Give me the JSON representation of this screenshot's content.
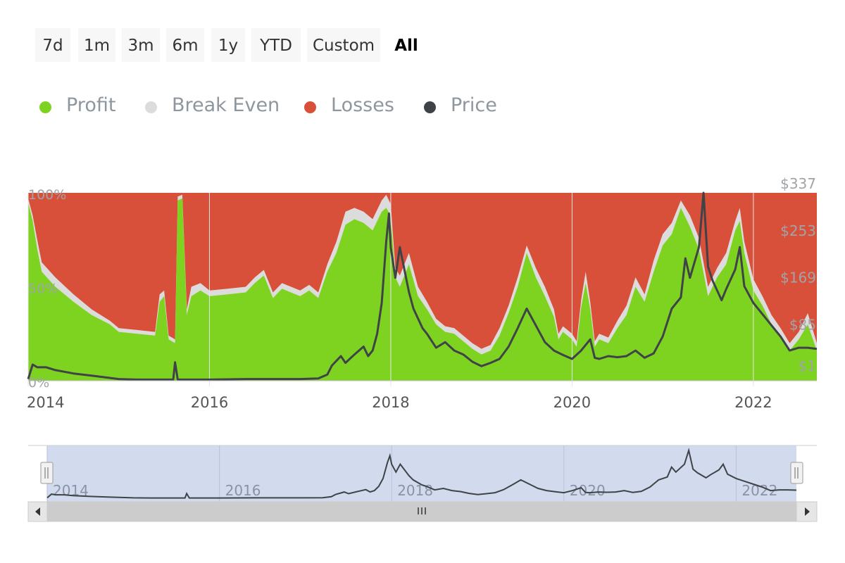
{
  "range_selector": {
    "buttons": [
      {
        "label": "7d",
        "active": false
      },
      {
        "label": "1m",
        "active": false
      },
      {
        "label": "3m",
        "active": false
      },
      {
        "label": "6m",
        "active": false
      },
      {
        "label": "1y",
        "active": false
      },
      {
        "label": "YTD",
        "active": false
      },
      {
        "label": "Custom",
        "active": false
      },
      {
        "label": "All",
        "active": true
      }
    ]
  },
  "legend": [
    {
      "label": "Profit",
      "color": "#7ed321"
    },
    {
      "label": "Break Even",
      "color": "#dcdcdc"
    },
    {
      "label": "Losses",
      "color": "#d9503a"
    },
    {
      "label": "Price",
      "color": "#3f4348"
    }
  ],
  "navigator": {
    "handle_left_icon": "grip-icon",
    "handle_right_icon": "grip-icon",
    "scroll_left_icon": "arrow-left-icon",
    "scroll_right_icon": "arrow-right-icon",
    "scroll_thumb_icon": "grip-icon",
    "x_tick_labels": [
      "2014",
      "2016",
      "2018",
      "2020",
      "2022"
    ]
  },
  "chart_data": {
    "type": "area",
    "x_tick_labels": [
      "2014",
      "2016",
      "2018",
      "2020",
      "2022"
    ],
    "y_left_tick_labels": [
      "0%",
      "50%",
      "100%"
    ],
    "y_right_tick_labels": [
      "$1",
      "$85",
      "$169",
      "$253",
      "$337"
    ],
    "ylim_left": [
      0,
      100
    ],
    "ylim_right": [
      1,
      337
    ],
    "xlim": [
      2014.0,
      2022.7
    ],
    "stacking": "percent",
    "series": [
      {
        "name": "Profit",
        "color": "#7ed321",
        "points": [
          [
            2014.0,
            95
          ],
          [
            2014.05,
            85
          ],
          [
            2014.1,
            70
          ],
          [
            2014.15,
            58
          ],
          [
            2014.3,
            50
          ],
          [
            2014.5,
            42
          ],
          [
            2014.7,
            35
          ],
          [
            2014.9,
            30
          ],
          [
            2015.0,
            26
          ],
          [
            2015.2,
            25
          ],
          [
            2015.4,
            24
          ],
          [
            2015.45,
            42
          ],
          [
            2015.5,
            45
          ],
          [
            2015.55,
            22
          ],
          [
            2015.62,
            20
          ],
          [
            2015.65,
            96
          ],
          [
            2015.7,
            97
          ],
          [
            2015.75,
            35
          ],
          [
            2015.8,
            45
          ],
          [
            2015.9,
            48
          ],
          [
            2016.0,
            45
          ],
          [
            2016.2,
            46
          ],
          [
            2016.4,
            47
          ],
          [
            2016.5,
            52
          ],
          [
            2016.6,
            56
          ],
          [
            2016.7,
            44
          ],
          [
            2016.8,
            49
          ],
          [
            2016.9,
            47
          ],
          [
            2017.0,
            45
          ],
          [
            2017.1,
            48
          ],
          [
            2017.2,
            44
          ],
          [
            2017.3,
            58
          ],
          [
            2017.4,
            68
          ],
          [
            2017.5,
            83
          ],
          [
            2017.6,
            86
          ],
          [
            2017.7,
            84
          ],
          [
            2017.8,
            80
          ],
          [
            2017.9,
            90
          ],
          [
            2017.95,
            92
          ],
          [
            2018.0,
            88
          ],
          [
            2018.05,
            55
          ],
          [
            2018.1,
            50
          ],
          [
            2018.2,
            62
          ],
          [
            2018.3,
            45
          ],
          [
            2018.4,
            38
          ],
          [
            2018.5,
            30
          ],
          [
            2018.6,
            26
          ],
          [
            2018.7,
            25
          ],
          [
            2018.8,
            21
          ],
          [
            2018.9,
            17
          ],
          [
            2019.0,
            14
          ],
          [
            2019.1,
            16
          ],
          [
            2019.2,
            24
          ],
          [
            2019.3,
            36
          ],
          [
            2019.4,
            50
          ],
          [
            2019.5,
            68
          ],
          [
            2019.6,
            55
          ],
          [
            2019.7,
            45
          ],
          [
            2019.8,
            34
          ],
          [
            2019.85,
            22
          ],
          [
            2019.9,
            26
          ],
          [
            2020.0,
            22
          ],
          [
            2020.05,
            18
          ],
          [
            2020.1,
            39
          ],
          [
            2020.15,
            52
          ],
          [
            2020.2,
            38
          ],
          [
            2020.25,
            18
          ],
          [
            2020.3,
            22
          ],
          [
            2020.4,
            20
          ],
          [
            2020.5,
            28
          ],
          [
            2020.6,
            35
          ],
          [
            2020.7,
            50
          ],
          [
            2020.8,
            42
          ],
          [
            2020.9,
            58
          ],
          [
            2021.0,
            72
          ],
          [
            2021.1,
            78
          ],
          [
            2021.2,
            92
          ],
          [
            2021.3,
            82
          ],
          [
            2021.4,
            70
          ],
          [
            2021.5,
            45
          ],
          [
            2021.6,
            55
          ],
          [
            2021.7,
            62
          ],
          [
            2021.8,
            80
          ],
          [
            2021.85,
            85
          ],
          [
            2021.9,
            68
          ],
          [
            2022.0,
            48
          ],
          [
            2022.1,
            40
          ],
          [
            2022.2,
            30
          ],
          [
            2022.3,
            24
          ],
          [
            2022.4,
            16
          ],
          [
            2022.5,
            22
          ],
          [
            2022.6,
            30
          ],
          [
            2022.7,
            16
          ]
        ]
      },
      {
        "name": "Break Even",
        "color": "#dcdcdc",
        "points": [
          [
            2014.0,
            97
          ],
          [
            2014.05,
            88
          ],
          [
            2014.1,
            75
          ],
          [
            2014.15,
            63
          ],
          [
            2014.3,
            55
          ],
          [
            2014.5,
            46
          ],
          [
            2014.7,
            38
          ],
          [
            2014.9,
            32
          ],
          [
            2015.0,
            28
          ],
          [
            2015.2,
            27
          ],
          [
            2015.4,
            26
          ],
          [
            2015.45,
            46
          ],
          [
            2015.5,
            48
          ],
          [
            2015.55,
            24
          ],
          [
            2015.62,
            22
          ],
          [
            2015.65,
            98
          ],
          [
            2015.7,
            99
          ],
          [
            2015.75,
            38
          ],
          [
            2015.8,
            50
          ],
          [
            2015.9,
            52
          ],
          [
            2016.0,
            48
          ],
          [
            2016.2,
            49
          ],
          [
            2016.4,
            50
          ],
          [
            2016.5,
            55
          ],
          [
            2016.6,
            59
          ],
          [
            2016.7,
            47
          ],
          [
            2016.8,
            52
          ],
          [
            2016.9,
            50
          ],
          [
            2017.0,
            48
          ],
          [
            2017.1,
            51
          ],
          [
            2017.2,
            47
          ],
          [
            2017.3,
            62
          ],
          [
            2017.4,
            74
          ],
          [
            2017.5,
            90
          ],
          [
            2017.6,
            92
          ],
          [
            2017.7,
            90
          ],
          [
            2017.8,
            86
          ],
          [
            2017.9,
            96
          ],
          [
            2017.95,
            99
          ],
          [
            2018.0,
            94
          ],
          [
            2018.05,
            60
          ],
          [
            2018.1,
            56
          ],
          [
            2018.2,
            68
          ],
          [
            2018.3,
            50
          ],
          [
            2018.4,
            42
          ],
          [
            2018.5,
            33
          ],
          [
            2018.6,
            29
          ],
          [
            2018.7,
            28
          ],
          [
            2018.8,
            24
          ],
          [
            2018.9,
            20
          ],
          [
            2019.0,
            17
          ],
          [
            2019.1,
            19
          ],
          [
            2019.2,
            28
          ],
          [
            2019.3,
            40
          ],
          [
            2019.4,
            55
          ],
          [
            2019.5,
            72
          ],
          [
            2019.6,
            60
          ],
          [
            2019.7,
            50
          ],
          [
            2019.8,
            38
          ],
          [
            2019.85,
            25
          ],
          [
            2019.9,
            29
          ],
          [
            2020.0,
            25
          ],
          [
            2020.05,
            21
          ],
          [
            2020.1,
            43
          ],
          [
            2020.15,
            58
          ],
          [
            2020.2,
            42
          ],
          [
            2020.25,
            21
          ],
          [
            2020.3,
            25
          ],
          [
            2020.4,
            23
          ],
          [
            2020.5,
            32
          ],
          [
            2020.6,
            40
          ],
          [
            2020.7,
            55
          ],
          [
            2020.8,
            46
          ],
          [
            2020.9,
            64
          ],
          [
            2021.0,
            78
          ],
          [
            2021.1,
            84
          ],
          [
            2021.2,
            96
          ],
          [
            2021.3,
            88
          ],
          [
            2021.4,
            76
          ],
          [
            2021.5,
            50
          ],
          [
            2021.6,
            60
          ],
          [
            2021.7,
            68
          ],
          [
            2021.8,
            85
          ],
          [
            2021.85,
            92
          ],
          [
            2021.9,
            74
          ],
          [
            2022.0,
            54
          ],
          [
            2022.1,
            45
          ],
          [
            2022.2,
            35
          ],
          [
            2022.3,
            28
          ],
          [
            2022.4,
            20
          ],
          [
            2022.5,
            26
          ],
          [
            2022.6,
            36
          ],
          [
            2022.7,
            20
          ]
        ]
      },
      {
        "name": "Losses",
        "color": "#d9503a",
        "values_note_fill_to": 100
      },
      {
        "name": "Price",
        "color": "#3f4348",
        "axis": "right",
        "points": [
          [
            2014.0,
            4
          ],
          [
            2014.05,
            30
          ],
          [
            2014.1,
            25
          ],
          [
            2014.2,
            25
          ],
          [
            2014.3,
            20
          ],
          [
            2014.5,
            14
          ],
          [
            2014.7,
            10
          ],
          [
            2014.9,
            6
          ],
          [
            2015.0,
            4
          ],
          [
            2015.2,
            3
          ],
          [
            2015.4,
            3
          ],
          [
            2015.6,
            3
          ],
          [
            2015.62,
            34
          ],
          [
            2015.65,
            3
          ],
          [
            2015.8,
            3
          ],
          [
            2016.0,
            3
          ],
          [
            2016.4,
            4
          ],
          [
            2016.8,
            4
          ],
          [
            2017.0,
            4
          ],
          [
            2017.2,
            5
          ],
          [
            2017.3,
            12
          ],
          [
            2017.35,
            28
          ],
          [
            2017.45,
            45
          ],
          [
            2017.5,
            33
          ],
          [
            2017.6,
            48
          ],
          [
            2017.7,
            62
          ],
          [
            2017.75,
            45
          ],
          [
            2017.8,
            55
          ],
          [
            2017.85,
            85
          ],
          [
            2017.9,
            140
          ],
          [
            2017.95,
            250
          ],
          [
            2017.98,
            300
          ],
          [
            2018.0,
            240
          ],
          [
            2018.05,
            185
          ],
          [
            2018.1,
            240
          ],
          [
            2018.2,
            160
          ],
          [
            2018.25,
            130
          ],
          [
            2018.35,
            95
          ],
          [
            2018.4,
            85
          ],
          [
            2018.5,
            60
          ],
          [
            2018.6,
            70
          ],
          [
            2018.7,
            55
          ],
          [
            2018.8,
            48
          ],
          [
            2018.9,
            35
          ],
          [
            2019.0,
            27
          ],
          [
            2019.1,
            33
          ],
          [
            2019.2,
            40
          ],
          [
            2019.3,
            62
          ],
          [
            2019.4,
            95
          ],
          [
            2019.5,
            130
          ],
          [
            2019.6,
            100
          ],
          [
            2019.7,
            70
          ],
          [
            2019.8,
            55
          ],
          [
            2019.9,
            47
          ],
          [
            2020.0,
            40
          ],
          [
            2020.1,
            55
          ],
          [
            2020.2,
            75
          ],
          [
            2020.25,
            42
          ],
          [
            2020.3,
            40
          ],
          [
            2020.4,
            45
          ],
          [
            2020.5,
            43
          ],
          [
            2020.6,
            45
          ],
          [
            2020.7,
            55
          ],
          [
            2020.8,
            42
          ],
          [
            2020.9,
            50
          ],
          [
            2021.0,
            80
          ],
          [
            2021.1,
            130
          ],
          [
            2021.2,
            150
          ],
          [
            2021.25,
            220
          ],
          [
            2021.3,
            185
          ],
          [
            2021.4,
            240
          ],
          [
            2021.45,
            337
          ],
          [
            2021.5,
            205
          ],
          [
            2021.55,
            180
          ],
          [
            2021.65,
            145
          ],
          [
            2021.7,
            165
          ],
          [
            2021.8,
            200
          ],
          [
            2021.85,
            240
          ],
          [
            2021.9,
            170
          ],
          [
            2022.0,
            140
          ],
          [
            2022.1,
            120
          ],
          [
            2022.2,
            100
          ],
          [
            2022.3,
            80
          ],
          [
            2022.4,
            55
          ],
          [
            2022.5,
            60
          ],
          [
            2022.6,
            60
          ],
          [
            2022.7,
            58
          ]
        ]
      }
    ]
  }
}
